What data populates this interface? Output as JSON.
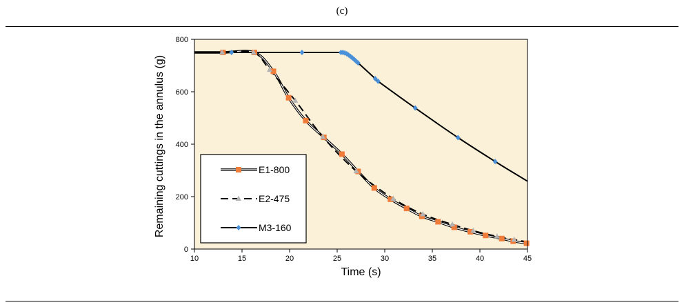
{
  "caption": "(c)",
  "chart_data": {
    "type": "line",
    "title": "",
    "xlabel": "Time (s)",
    "ylabel": "Remaining cuttings in the annulus (g)",
    "xlim": [
      10,
      45
    ],
    "ylim": [
      0,
      800
    ],
    "x_ticks": [
      10,
      15,
      20,
      25,
      30,
      35,
      40,
      45
    ],
    "y_ticks": [
      0,
      200,
      400,
      600,
      800
    ],
    "grid": false,
    "background": "#fbf0d8",
    "legend_position": "lower-left",
    "series": [
      {
        "name": "E1-800",
        "color": "#f07c3a",
        "marker": "square",
        "line_style": "double",
        "x": [
          13,
          16.3,
          18.3,
          19.9,
          21.7,
          23.6,
          25.5,
          27.2,
          28.9,
          30.6,
          32.3,
          33.9,
          35.6,
          37.3,
          39.0,
          40.6,
          42.3,
          43.5,
          44.9
        ],
        "y": [
          750,
          750,
          678,
          577,
          490,
          426,
          362,
          296,
          233,
          190,
          155,
          125,
          104,
          83,
          66,
          52,
          40,
          30,
          22
        ]
      },
      {
        "name": "E2-475",
        "color": "#b4b4b4",
        "marker": "triangle",
        "line_style": "dashed",
        "x": [
          12.9,
          16.2,
          17.9,
          20.6,
          23.5,
          27.0,
          30.9,
          34.0,
          37.1,
          39.3,
          41.8,
          43.6
        ],
        "y": [
          750,
          750,
          684,
          566,
          428,
          297,
          192,
          133,
          94,
          70,
          48,
          36
        ]
      },
      {
        "name": "M3-160",
        "color": "#4a90d9",
        "marker": "diamond",
        "line_style": "solid",
        "x": [
          13.9,
          21.3,
          25.4,
          25.6,
          25.8,
          26.0,
          26.2,
          26.4,
          26.6,
          26.8,
          27.0,
          27.2,
          29.0,
          29.3,
          33.2,
          37.7,
          41.6
        ],
        "y": [
          750,
          750,
          750,
          750,
          748,
          745,
          740,
          735,
          729,
          723,
          716,
          710,
          650,
          640,
          538,
          425,
          334
        ]
      }
    ]
  }
}
